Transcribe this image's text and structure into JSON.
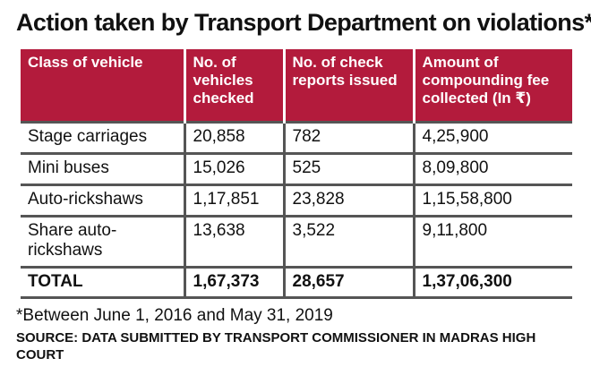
{
  "title": "Action taken by Transport Department on violations*",
  "headers": [
    "Class of vehicle",
    "No. of vehicles checked",
    "No. of check reports issued",
    "Amount of compounding fee collected (In ₹)"
  ],
  "rows": [
    [
      "Stage carriages",
      "20,858",
      "782",
      "4,25,900"
    ],
    [
      "Mini buses",
      "15,026",
      "525",
      "8,09,800"
    ],
    [
      "Auto-rickshaws",
      "1,17,851",
      "23,828",
      "1,15,58,800"
    ],
    [
      "Share auto-rickshaws",
      "13,638",
      "3,522",
      "9,11,800"
    ]
  ],
  "total": [
    "TOTAL",
    "1,67,373",
    "28,657",
    "1,37,06,300"
  ],
  "footnote": "*Between June 1, 2016 and May 31, 2019",
  "source": "SOURCE: DATA SUBMITTED BY TRANSPORT COMMISSIONER IN MADRAS HIGH COURT",
  "colors": {
    "header_bg": "#b31b3c",
    "header_text": "#ffffff",
    "rule": "#555555"
  },
  "chart_data": {
    "type": "table",
    "title": "Action taken by Transport Department on violations*",
    "columns": [
      "Class of vehicle",
      "No. of vehicles checked",
      "No. of check reports issued",
      "Amount of compounding fee collected (In ₹)"
    ],
    "categories": [
      "Stage carriages",
      "Mini buses",
      "Auto-rickshaws",
      "Share auto-rickshaws"
    ],
    "series": [
      {
        "name": "No. of vehicles checked",
        "values": [
          20858,
          15026,
          117851,
          13638
        ]
      },
      {
        "name": "No. of check reports issued",
        "values": [
          782,
          525,
          23828,
          3522
        ]
      },
      {
        "name": "Amount of compounding fee collected (In ₹)",
        "values": [
          425900,
          809800,
          11558800,
          911800
        ]
      }
    ],
    "totals": [
      167373,
      28657,
      13706300
    ]
  }
}
